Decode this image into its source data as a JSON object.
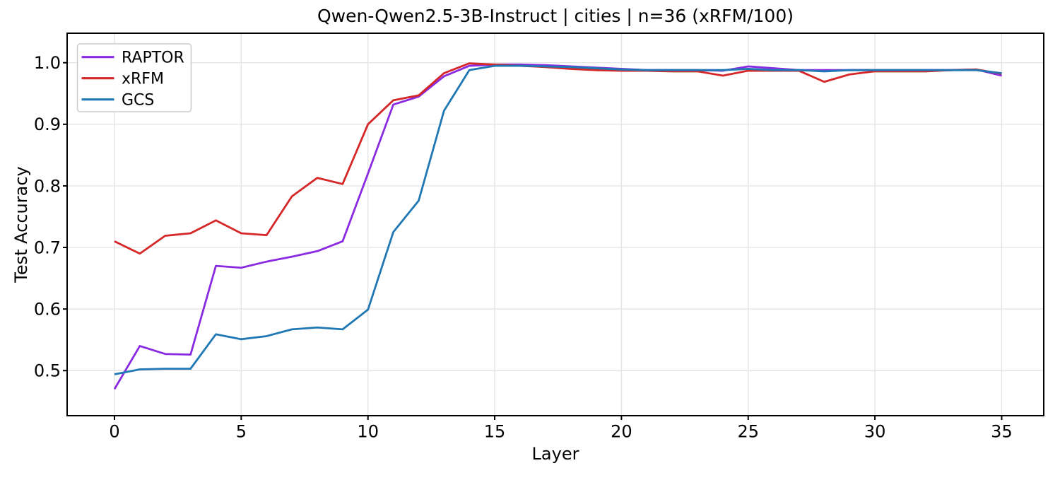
{
  "title": "Qwen-Qwen2.5-3B-Instruct | cities | n=36 (xRFM/100)",
  "chart_data": {
    "type": "line",
    "title": "Qwen-Qwen2.5-3B-Instruct | cities | n=36 (xRFM/100)",
    "xlabel": "Layer",
    "ylabel": "Test Accuracy",
    "x": [
      0,
      1,
      2,
      3,
      4,
      5,
      6,
      7,
      8,
      9,
      10,
      11,
      12,
      13,
      14,
      15,
      16,
      17,
      18,
      19,
      20,
      21,
      22,
      23,
      24,
      25,
      26,
      27,
      28,
      29,
      30,
      31,
      32,
      33,
      34,
      35
    ],
    "series": [
      {
        "name": "RAPTOR",
        "color": "#8a2be2",
        "values": [
          0.47,
          0.54,
          0.527,
          0.526,
          0.67,
          0.667,
          0.677,
          0.685,
          0.694,
          0.71,
          0.82,
          0.932,
          0.945,
          0.978,
          0.995,
          0.997,
          0.997,
          0.996,
          0.994,
          0.992,
          0.99,
          0.988,
          0.988,
          0.988,
          0.987,
          0.994,
          0.991,
          0.988,
          0.988,
          0.988,
          0.988,
          0.988,
          0.988,
          0.988,
          0.989,
          0.979
        ]
      },
      {
        "name": "xRFM",
        "color": "#d62728",
        "values": [
          0.71,
          0.69,
          0.719,
          0.723,
          0.744,
          0.723,
          0.72,
          0.783,
          0.813,
          0.803,
          0.9,
          0.939,
          0.947,
          0.983,
          0.999,
          0.997,
          0.995,
          0.993,
          0.99,
          0.988,
          0.987,
          0.987,
          0.986,
          0.986,
          0.979,
          0.987,
          0.987,
          0.987,
          0.969,
          0.981,
          0.986,
          0.986,
          0.986,
          0.988,
          0.989,
          0.982
        ]
      },
      {
        "name": "GCS",
        "color": "#1f77b4",
        "values": [
          0.494,
          0.502,
          0.503,
          0.503,
          0.559,
          0.551,
          0.556,
          0.567,
          0.57,
          0.567,
          0.599,
          0.725,
          0.776,
          0.922,
          0.988,
          0.995,
          0.995,
          0.994,
          0.993,
          0.991,
          0.989,
          0.988,
          0.988,
          0.988,
          0.988,
          0.99,
          0.988,
          0.988,
          0.986,
          0.988,
          0.988,
          0.988,
          0.988,
          0.988,
          0.988,
          0.983
        ]
      }
    ],
    "xticks": {
      "values": [
        0,
        5,
        10,
        15,
        20,
        25,
        30,
        35
      ],
      "labels": [
        "0",
        "5",
        "10",
        "15",
        "20",
        "25",
        "30",
        "35"
      ]
    },
    "yticks": {
      "values": [
        0.5,
        0.6,
        0.7,
        0.8,
        0.9,
        1.0
      ],
      "labels": [
        "0.5",
        "0.6",
        "0.7",
        "0.8",
        "0.9",
        "1.0"
      ]
    },
    "xlim": [
      -1.868,
      36.66
    ],
    "ylim": [
      0.4268,
      1.0479
    ],
    "grid": true,
    "legend_position": "upper left",
    "colors": {
      "grid": "#e5e5e5",
      "spine": "#000000",
      "text": "#000000",
      "background": "#ffffff"
    }
  }
}
